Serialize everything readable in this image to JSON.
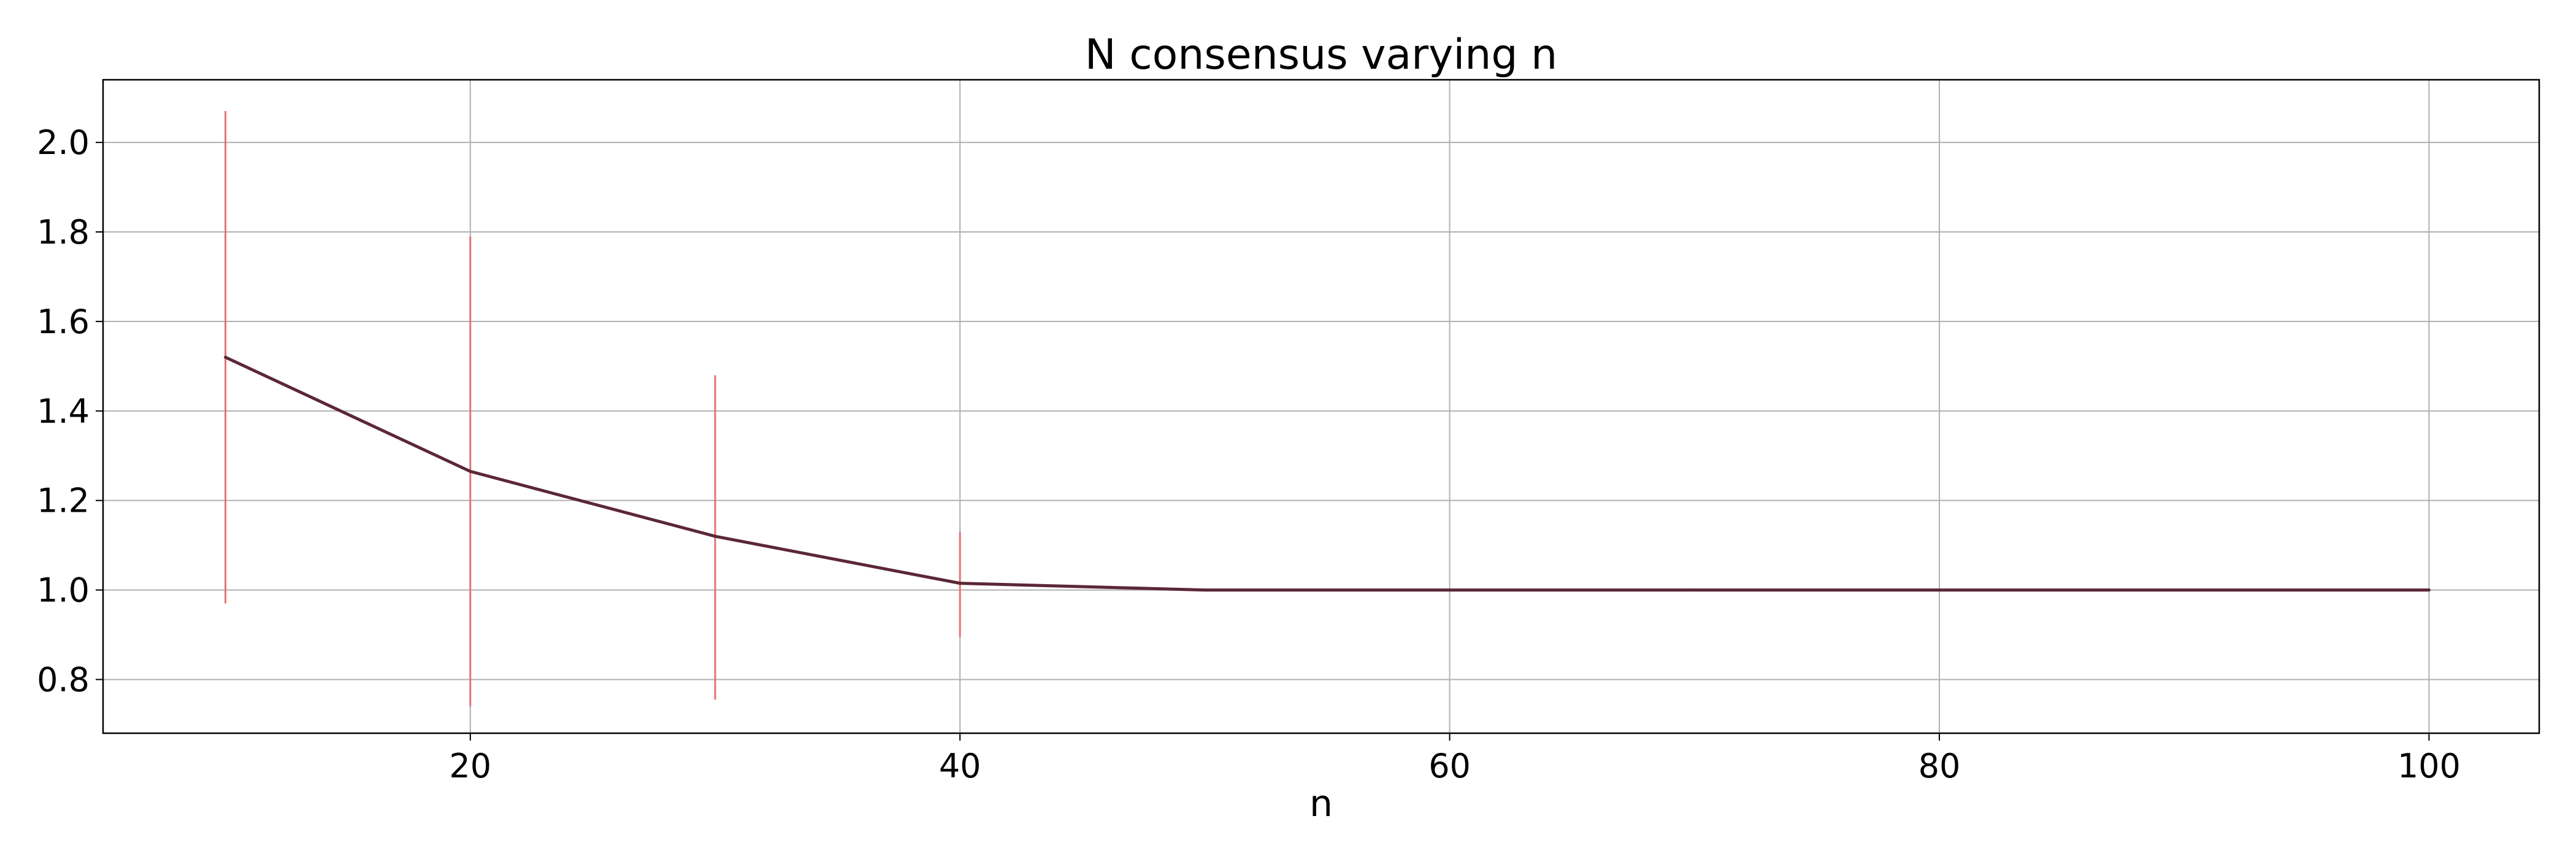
{
  "chart_data": {
    "type": "line",
    "title": "N consensus varying n",
    "xlabel": "n",
    "ylabel": "",
    "xlim": [
      5,
      104.5
    ],
    "ylim": [
      0.68,
      2.14
    ],
    "x_ticks": [
      20,
      40,
      60,
      80,
      100
    ],
    "x_tick_labels": [
      "20",
      "40",
      "60",
      "80",
      "100"
    ],
    "y_ticks": [
      0.8,
      1.0,
      1.2,
      1.4,
      1.6,
      1.8,
      2.0
    ],
    "y_tick_labels": [
      "0.8",
      "1.0",
      "1.2",
      "1.4",
      "1.6",
      "1.8",
      "2.0"
    ],
    "grid": true,
    "series": [
      {
        "color": "#5c2738",
        "points": [
          {
            "x": 10,
            "y": 1.52
          },
          {
            "x": 20,
            "y": 1.265
          },
          {
            "x": 30,
            "y": 1.12
          },
          {
            "x": 40,
            "y": 1.015
          },
          {
            "x": 50,
            "y": 1.0
          },
          {
            "x": 60,
            "y": 1.0
          },
          {
            "x": 70,
            "y": 1.0
          },
          {
            "x": 80,
            "y": 1.0
          },
          {
            "x": 90,
            "y": 1.0
          },
          {
            "x": 100,
            "y": 1.0
          }
        ]
      }
    ],
    "error_bars": {
      "color": "#e57373",
      "items": [
        {
          "x": 10,
          "low": 0.97,
          "high": 2.07
        },
        {
          "x": 20,
          "low": 0.74,
          "high": 1.79
        },
        {
          "x": 30,
          "low": 0.755,
          "high": 1.48
        },
        {
          "x": 40,
          "low": 0.895,
          "high": 1.13
        }
      ]
    }
  }
}
